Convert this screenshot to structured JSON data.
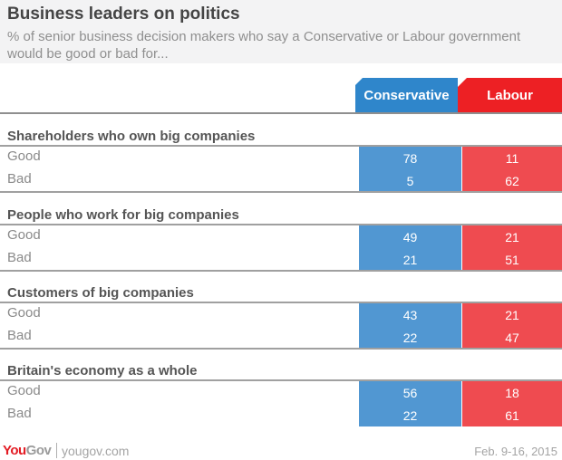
{
  "header": {
    "title": "Business leaders on politics",
    "subtitle": "% of senior business decision makers who say a Conservative or Labour government would be good or bad for..."
  },
  "columns": {
    "conservative": "Conservative",
    "labour": "Labour"
  },
  "colors": {
    "conservative_header": "#2f86cb",
    "labour_header": "#ed2024",
    "conservative_cell": "#5197d2",
    "labour_cell": "#ef4b50"
  },
  "chart_data": {
    "type": "table",
    "title": "Business leaders on politics",
    "subtitle": "% of senior business decision makers who say a Conservative or Labour government would be good or bad for...",
    "columns": [
      "Conservative",
      "Labour"
    ],
    "sections": [
      {
        "title": "Shareholders who own big companies",
        "rows": [
          {
            "label": "Good",
            "conservative": 78,
            "labour": 11
          },
          {
            "label": "Bad",
            "conservative": 5,
            "labour": 62
          }
        ]
      },
      {
        "title": "People who work for big companies",
        "rows": [
          {
            "label": "Good",
            "conservative": 49,
            "labour": 21
          },
          {
            "label": "Bad",
            "conservative": 21,
            "labour": 51
          }
        ]
      },
      {
        "title": "Customers of big companies",
        "rows": [
          {
            "label": "Good",
            "conservative": 43,
            "labour": 21
          },
          {
            "label": "Bad",
            "conservative": 22,
            "labour": 47
          }
        ]
      },
      {
        "title": "Britain's economy as a whole",
        "rows": [
          {
            "label": "Good",
            "conservative": 56,
            "labour": 18
          },
          {
            "label": "Bad",
            "conservative": 22,
            "labour": 61
          }
        ]
      }
    ]
  },
  "footer": {
    "logo_you": "You",
    "logo_gov": "Gov",
    "site": "yougov.com",
    "date": "Feb. 9-16, 2015"
  }
}
